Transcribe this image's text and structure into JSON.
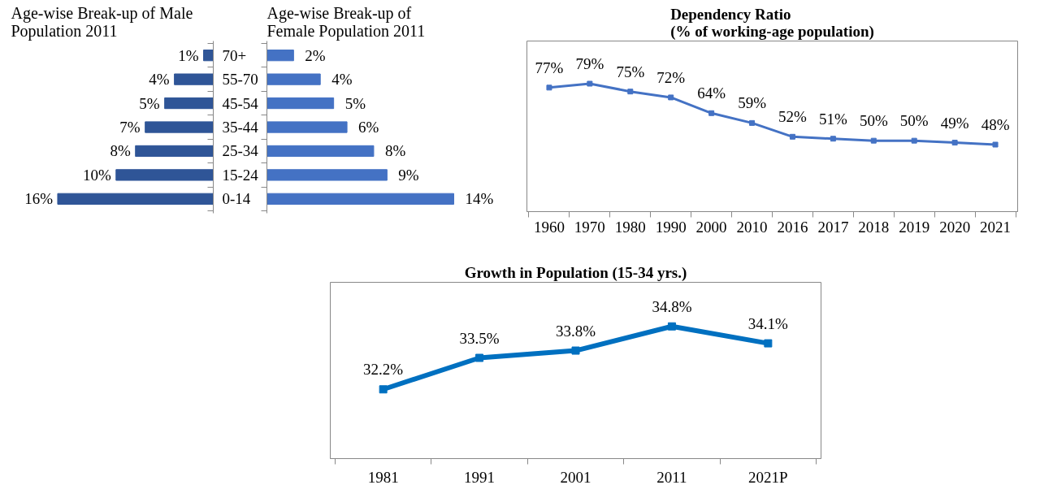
{
  "chart_data": [
    {
      "type": "bar",
      "orientation": "horizontal",
      "title": "Age-wise Break-up of Male Population 2011",
      "categories": [
        "70+",
        "55-70",
        "45-54",
        "35-44",
        "25-34",
        "15-24",
        "0-14"
      ],
      "values": [
        1,
        4,
        5,
        7,
        8,
        10,
        16
      ],
      "color": "#2f5597",
      "value_labels": [
        "1%",
        "4%",
        "5%",
        "7%",
        "8%",
        "10%",
        "16%"
      ]
    },
    {
      "type": "bar",
      "orientation": "horizontal",
      "title": "Age-wise Break-up of Female Population 2011",
      "categories": [
        null,
        null,
        null,
        null,
        null,
        null,
        null
      ],
      "values": [
        2,
        4,
        5,
        6,
        8,
        9,
        14
      ],
      "color": "#4472c4",
      "value_labels": [
        "2%",
        "4%",
        "5%",
        "6%",
        "8%",
        "9%",
        "14%"
      ]
    },
    {
      "type": "line",
      "title": "Dependency Ratio\n(% of working-age population)",
      "categories": [
        "1960",
        "1970",
        "1980",
        "1990",
        "2000",
        "2010",
        "2016",
        "2017",
        "2018",
        "2019",
        "2020",
        "2021"
      ],
      "values": [
        77,
        79,
        75,
        72,
        64,
        59,
        52,
        51,
        50,
        50,
        49,
        48
      ],
      "color": "#4472c4",
      "marker": "square",
      "value_labels": [
        "77%",
        "79%",
        "75%",
        "72%",
        "64%",
        "59%",
        "52%",
        "51%",
        "50%",
        "50%",
        "49%",
        "48%"
      ]
    },
    {
      "type": "line",
      "title": "Growth in Population (15-34 yrs.)",
      "categories": [
        "1981",
        "1991",
        "2001",
        "2011",
        "2021P"
      ],
      "values": [
        32.2,
        33.5,
        33.8,
        34.8,
        34.1
      ],
      "color": "#0070c0",
      "marker": "square",
      "value_labels": [
        "32.2%",
        "33.5%",
        "33.8%",
        "34.8%",
        "34.1%"
      ]
    }
  ]
}
